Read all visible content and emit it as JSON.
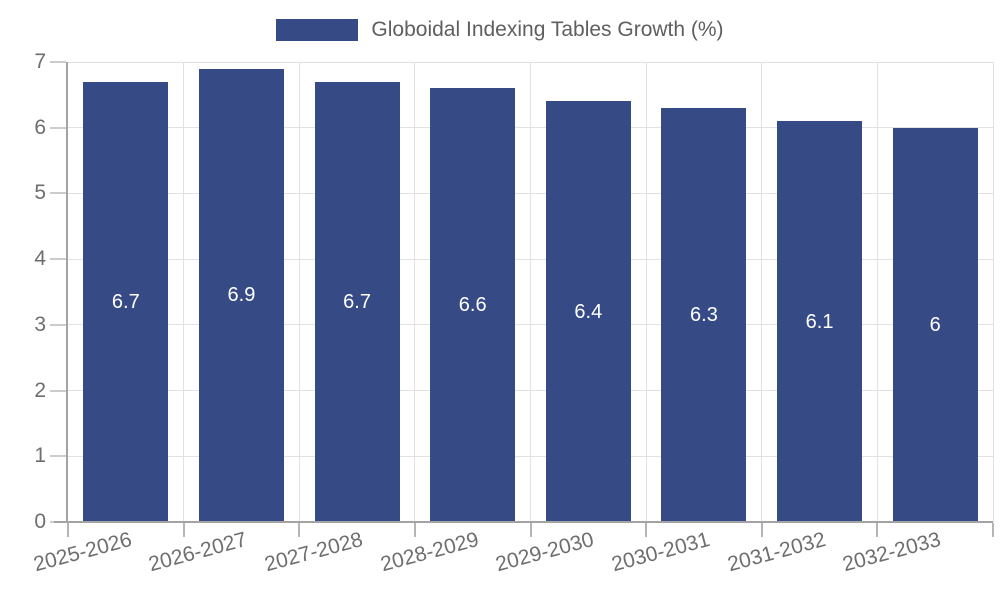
{
  "legend": {
    "label": "Globoidal Indexing Tables Growth (%)"
  },
  "chart_data": {
    "type": "bar",
    "title": "Globoidal Indexing Tables Growth (%)",
    "legend_entries": [
      "Globoidal Indexing Tables Growth (%)"
    ],
    "legend_position": "top-center",
    "categories": [
      "2025-2026",
      "2026-2027",
      "2027-2028",
      "2028-2029",
      "2029-2030",
      "2030-2031",
      "2031-2032",
      "2032-2033"
    ],
    "values": [
      6.7,
      6.9,
      6.7,
      6.6,
      6.4,
      6.3,
      6.1,
      6
    ],
    "value_labels": [
      "6.7",
      "6.9",
      "6.7",
      "6.6",
      "6.4",
      "6.3",
      "6.1",
      "6"
    ],
    "xlabel": "",
    "ylabel": "",
    "ylim": [
      0,
      7
    ],
    "ytick_labels": [
      "0",
      "1",
      "2",
      "3",
      "4",
      "5",
      "6",
      "7"
    ],
    "grid": true,
    "xtick_rotation_deg": 15,
    "colors": {
      "bar": "#364A85",
      "grid": "#e2e2e2",
      "axis": "#a3a3a3",
      "tick_text": "#6e6e6e",
      "legend_text": "#5f5f5f",
      "bar_label_text": "#ffffff",
      "background": "#ffffff"
    }
  }
}
